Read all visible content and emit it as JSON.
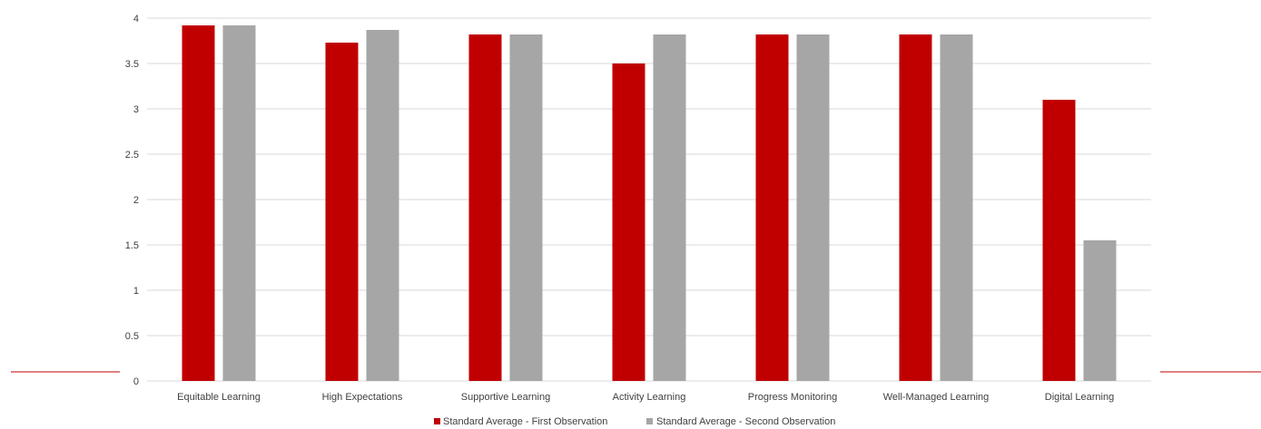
{
  "chart_data": {
    "type": "bar",
    "title": "",
    "xlabel": "",
    "ylabel": "",
    "ylim": [
      0,
      4
    ],
    "yticks": [
      0,
      0.5,
      1,
      1.5,
      2,
      2.5,
      3,
      3.5,
      4
    ],
    "ytick_labels": [
      "0",
      "0.5",
      "1",
      "1.5",
      "2",
      "2.5",
      "3",
      "3.5",
      "4"
    ],
    "grid": true,
    "legend_position": "bottom",
    "categories": [
      "Equitable Learning",
      "High Expectations",
      "Supportive Learning",
      "Activity Learning",
      "Progress Monitoring",
      "Well-Managed Learning",
      "Digital Learning"
    ],
    "series": [
      {
        "name": "Standard Average - First Observation",
        "color": "#c00000",
        "values": [
          3.92,
          3.73,
          3.82,
          3.5,
          3.82,
          3.82,
          3.1
        ]
      },
      {
        "name": "Standard Average - Second Observation",
        "color": "#a6a6a6",
        "values": [
          3.92,
          3.87,
          3.82,
          3.82,
          3.82,
          3.82,
          1.55
        ]
      }
    ]
  }
}
